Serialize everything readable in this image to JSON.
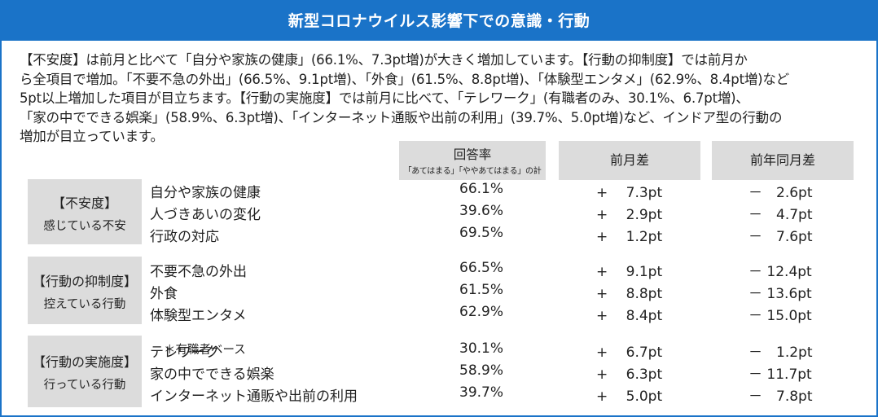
{
  "title": "新型コロナウイルス影響下での意識・行動",
  "summary": [
    "【不安度】は前月と比べて「自分や家族の健康」(66.1%、7.3pt増)が大きく増加しています。【行動の抑制度】では前月か",
    "ら全項目で増加。「不要不急の外出」(66.5%、9.1pt増)、「外食」(61.5%、8.8pt増)、「体験型エンタメ」(62.9%、8.4pt増)など",
    "5pt以上増加した項目が目立ちます。【行動の実施度】では前月に比べて、「テレワーク」(有職者のみ、30.1%、6.7pt増)、",
    "「家の中でできる娯楽」(58.9%、6.3pt増)、「インターネット通販や出前の利用」(39.7%、5.0pt増)など、インドア型の行動の",
    "増加が目立っています。"
  ],
  "columns": {
    "rate": "回答率",
    "rate_note": "「あてはまる」「ややあてはまる」の計",
    "mom": "前月差",
    "yoy": "前年同月差"
  },
  "groups": [
    {
      "label": "【不安度】",
      "sublabel": "感じている不安",
      "rows": [
        {
          "item": "自分や家族の健康",
          "note": "",
          "rate": "66.1%",
          "mom": "+　 7.3pt",
          "yoy": "－　2.6pt"
        },
        {
          "item": "人づきあいの変化",
          "note": "",
          "rate": "39.6%",
          "mom": "+　 2.9pt",
          "yoy": "－　4.7pt"
        },
        {
          "item": "行政の対応",
          "note": "",
          "rate": "69.5%",
          "mom": "+　 1.2pt",
          "yoy": "－　7.6pt"
        }
      ]
    },
    {
      "label": "【行動の抑制度】",
      "sublabel": "控えている行動",
      "rows": [
        {
          "item": "不要不急の外出",
          "note": "",
          "rate": "66.5%",
          "mom": "+　 9.1pt",
          "yoy": "－ 12.4pt"
        },
        {
          "item": "外食",
          "note": "",
          "rate": "61.5%",
          "mom": "+　 8.8pt",
          "yoy": "－ 13.6pt"
        },
        {
          "item": "体験型エンタメ",
          "note": "",
          "rate": "62.9%",
          "mom": "+　 8.4pt",
          "yoy": "－ 15.0pt"
        }
      ]
    },
    {
      "label": "【行動の実施度】",
      "sublabel": "行っている行動",
      "rows": [
        {
          "item": "テレワーク",
          "note": "＊有職者ベース",
          "rate": "30.1%",
          "mom": "+　 6.7pt",
          "yoy": "－　1.2pt"
        },
        {
          "item": "家の中でできる娯楽",
          "note": "",
          "rate": "58.9%",
          "mom": "+　 6.3pt",
          "yoy": "－ 11.7pt"
        },
        {
          "item": "インターネット通販や出前の利用",
          "note": "",
          "rate": "39.7%",
          "mom": "+　 5.0pt",
          "yoy": "－　7.8pt"
        }
      ]
    }
  ]
}
